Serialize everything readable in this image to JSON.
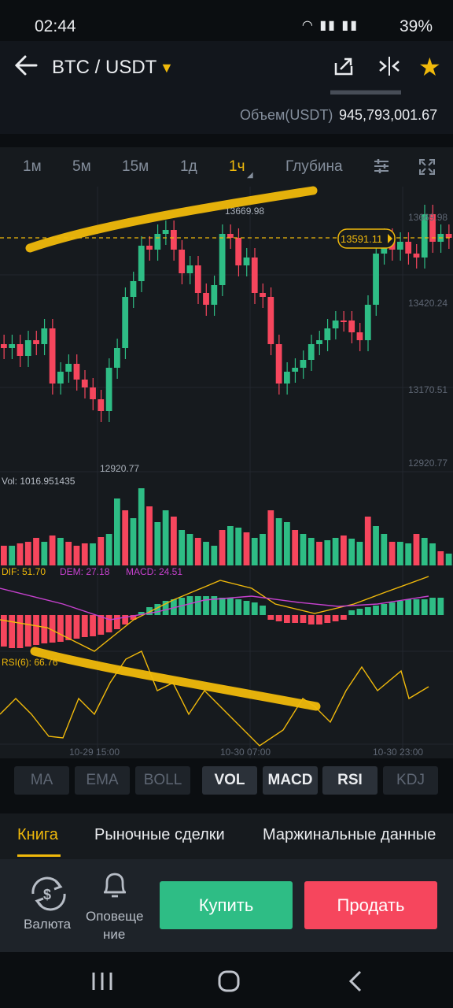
{
  "status": {
    "time": "02:44",
    "battery": "39%"
  },
  "header": {
    "pair": "BTC / USDT",
    "volume_label": "Объем(USDT)",
    "volume_value": "945,793,001.67"
  },
  "intervals": [
    {
      "label": "1м",
      "active": false
    },
    {
      "label": "5м",
      "active": false
    },
    {
      "label": "15м",
      "active": false
    },
    {
      "label": "1д",
      "active": false
    },
    {
      "label": "1ч",
      "active": true
    },
    {
      "label": "Глубина",
      "active": false
    }
  ],
  "chart": {
    "high_label": "13669.98",
    "low_label": "12920.77",
    "current_price": "13591.11",
    "price_ticks": [
      "13669.98",
      "13420.24",
      "13170.51",
      "12920.77"
    ],
    "vol_label": "Vol: 1016.951435",
    "macd": {
      "dif": "DIF: 51.70",
      "dem": "DEM: 27.18",
      "macd": "MACD: 24.51"
    },
    "rsi_label": "RSI(6): 66.76",
    "time_labels": [
      "10-29 15:00",
      "10-30 07:00",
      "10-30 23:00"
    ],
    "colors": {
      "up": "#2ebd85",
      "down": "#f6465d",
      "accent": "#f0b90b",
      "dem": "#c641ce"
    }
  },
  "indicators": [
    {
      "label": "MA",
      "on": false
    },
    {
      "label": "EMA",
      "on": false
    },
    {
      "label": "BOLL",
      "on": false
    },
    {
      "label": "VOL",
      "on": true
    },
    {
      "label": "MACD",
      "on": true
    },
    {
      "label": "RSI",
      "on": true
    },
    {
      "label": "KDJ",
      "on": false
    }
  ],
  "tabs": [
    {
      "label": "Книга",
      "active": true
    },
    {
      "label": "Рыночные сделки",
      "active": false
    },
    {
      "label": "Маржинальные данные",
      "active": false
    }
  ],
  "bottom": {
    "currency_label": "Валюта",
    "alerts_label_1": "Оповеще",
    "alerts_label_2": "ние",
    "buy_label": "Купить",
    "sell_label": "Продать"
  }
}
